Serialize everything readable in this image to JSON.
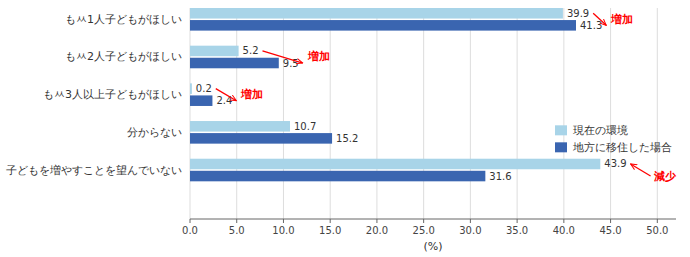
{
  "chart_data": {
    "type": "bar",
    "orientation": "horizontal",
    "categories": [
      "もㅆ1人子どもがほしい",
      "もㅆ2人子どもがほしい",
      "もㅆ3人以上子どもがほしい",
      "分からない",
      "子どもを増やすことを望んでいない"
    ],
    "series": [
      {
        "name": "現在の環境",
        "color": "#a8d4e8",
        "values": [
          39.9,
          5.2,
          0.2,
          10.7,
          43.9
        ]
      },
      {
        "name": "地方に移住した場合",
        "color": "#3a65b0",
        "values": [
          41.3,
          9.5,
          2.4,
          15.2,
          31.6
        ]
      }
    ],
    "xlabel": "(%)",
    "xlim": [
      0,
      52
    ],
    "xticks": [
      {
        "value": 0,
        "label": "0.0"
      },
      {
        "value": 5,
        "label": "5.0"
      },
      {
        "value": 10,
        "label": "10.0"
      },
      {
        "value": 15,
        "label": "15.0"
      },
      {
        "value": 20,
        "label": "20.0"
      },
      {
        "value": 25,
        "label": "25.0"
      },
      {
        "value": 30,
        "label": "30.0"
      },
      {
        "value": 35,
        "label": "35.0"
      },
      {
        "value": 40,
        "label": "40.0"
      },
      {
        "value": 45,
        "label": "45.0"
      },
      {
        "value": 50,
        "label": "50.0"
      }
    ],
    "grid": true,
    "legend": "right",
    "data_labels": true,
    "annotations": [
      {
        "text": "増加",
        "category": "もㅆ1人子どもがほしい",
        "color": "red"
      },
      {
        "text": "増加",
        "category": "もㅆ2人子どもがほしい",
        "color": "red"
      },
      {
        "text": "増加",
        "category": "もㅆ3人以上子どもがほしい",
        "color": "red"
      },
      {
        "text": "減少",
        "category": "子どもを増やすことを望んでいない",
        "color": "red"
      }
    ]
  }
}
